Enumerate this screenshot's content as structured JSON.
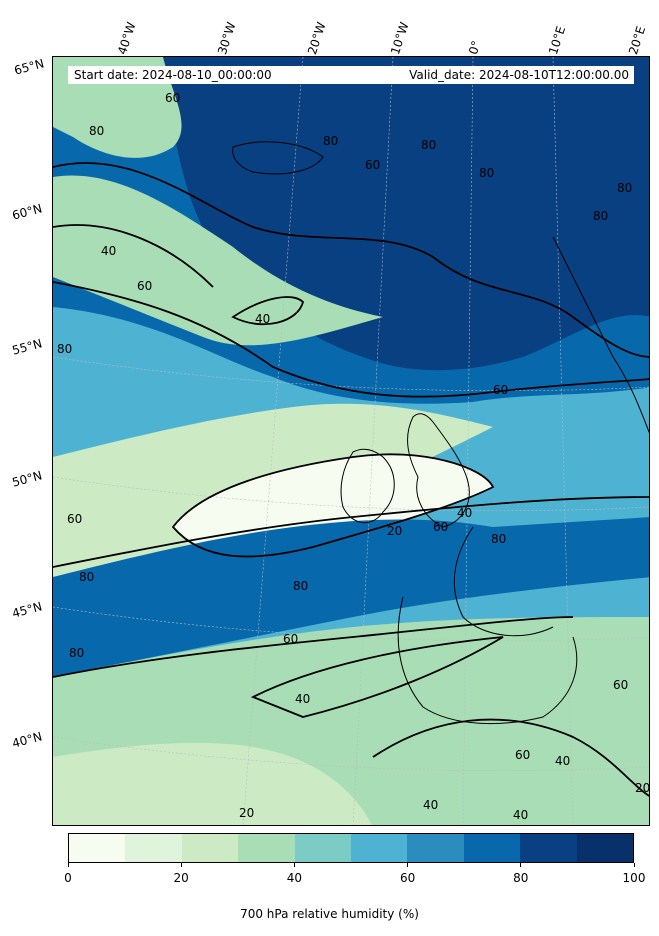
{
  "header": {
    "start_date": "Start date: 2024-08-10_00:00:00",
    "valid_date": "Valid_date: 2024-08-10T12:00:00.00"
  },
  "map": {
    "projection": "lambert-conformal",
    "region": "North Atlantic and western Europe",
    "longitude_labels": [
      "40°W",
      "30°W",
      "20°W",
      "10°W",
      "0°",
      "10°E",
      "20°E"
    ],
    "latitude_labels": [
      "65°N",
      "60°N",
      "55°N",
      "50°N",
      "45°N",
      "40°N"
    ],
    "contour_levels": [
      20,
      40,
      60,
      80
    ],
    "contour_labels_visible": [
      "60",
      "80",
      "40",
      "60",
      "80",
      "60",
      "40",
      "80",
      "80",
      "60",
      "80",
      "20",
      "40",
      "60",
      "80",
      "80",
      "60",
      "80",
      "40",
      "20",
      "40",
      "60",
      "40",
      "40",
      "20",
      "80",
      "60",
      "60",
      "80",
      "80"
    ],
    "colors": {
      "coastline": "#000000",
      "contour": "#000000",
      "gridline": "#bcbcbc"
    }
  },
  "colorbar": {
    "label": "700 hPa relative humidity (%)",
    "ticks": [
      "0",
      "20",
      "40",
      "60",
      "80",
      "100"
    ],
    "range": [
      0,
      100
    ],
    "bins": 10,
    "colors": [
      "#f7fcf0",
      "#e0f3db",
      "#ccebc5",
      "#a8ddb5",
      "#7bccc4",
      "#4eb3d3",
      "#2b8cbe",
      "#0868ac",
      "#084081",
      "#08306b"
    ]
  }
}
